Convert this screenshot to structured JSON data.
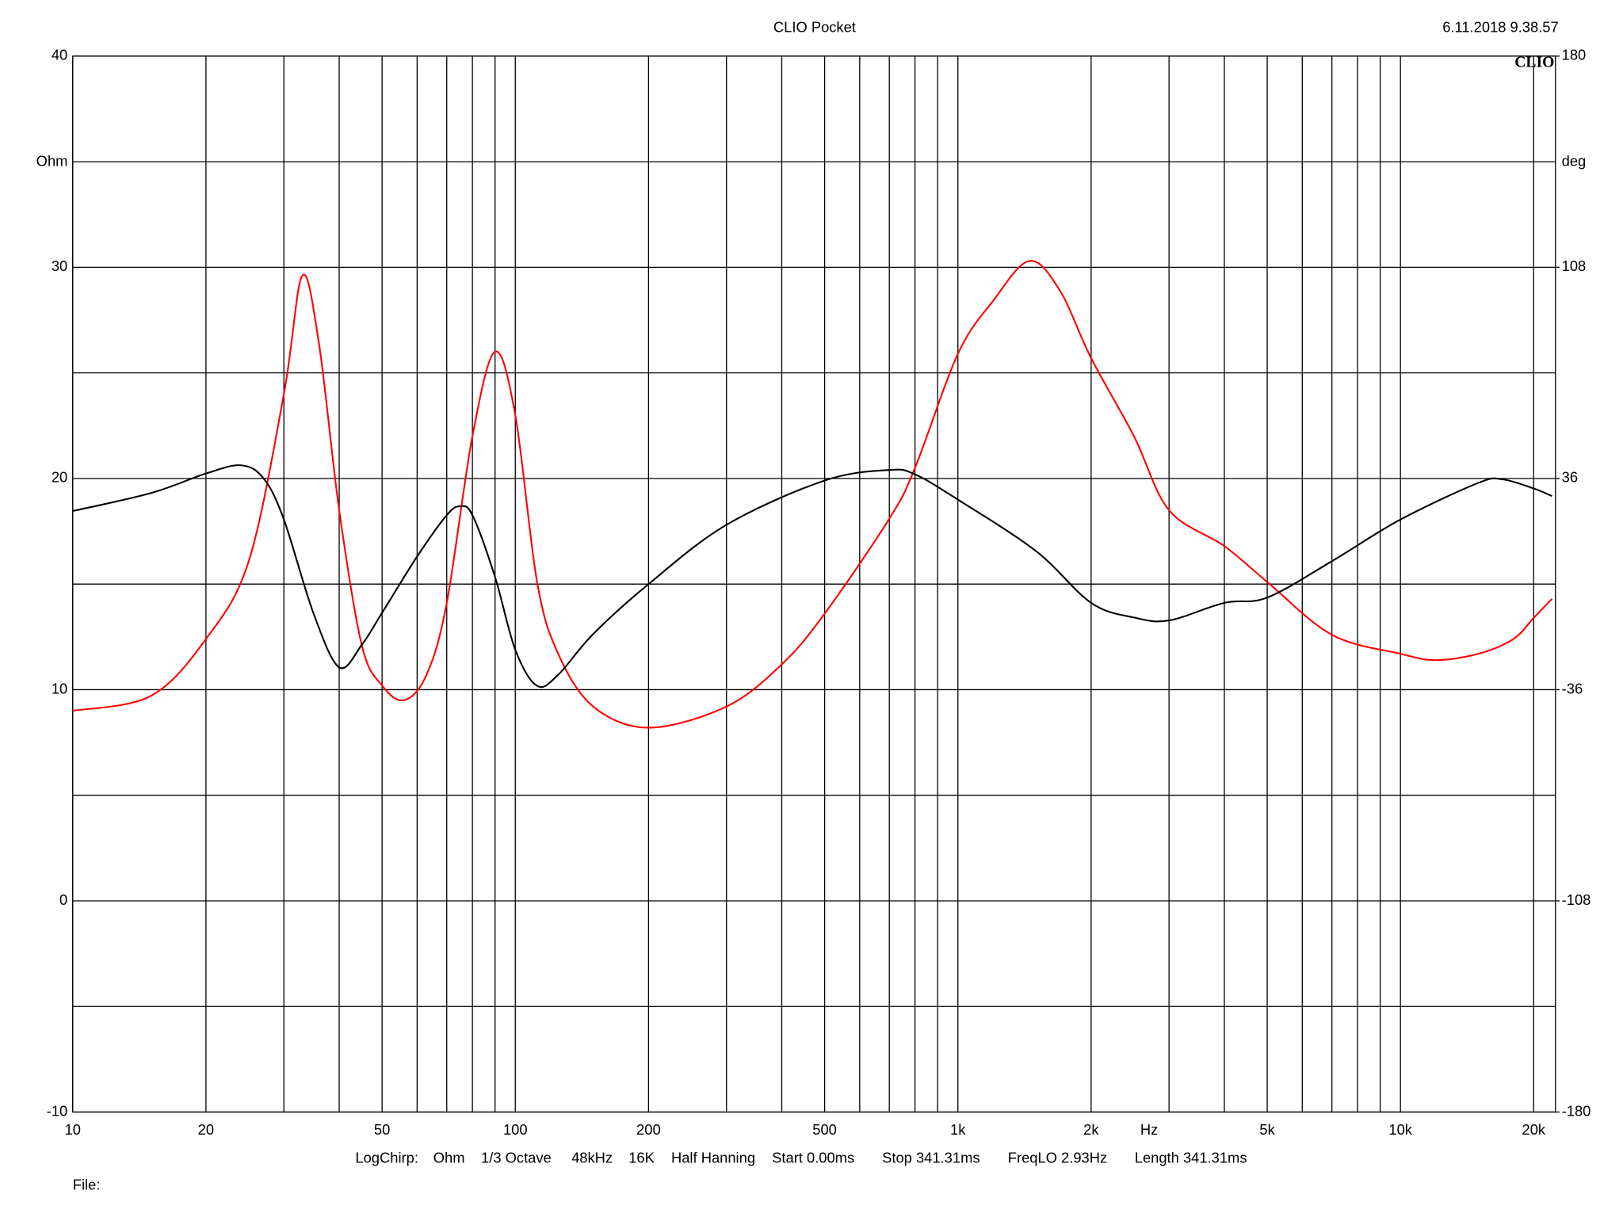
{
  "chart_data": {
    "type": "line",
    "title": "CLIO Pocket",
    "timestamp": "6.11.2018 9.38.57",
    "logo": "CLIO",
    "ylabel": "Ohm",
    "y2label": "deg",
    "xlabel": "Hz",
    "xscale": "log",
    "xlim": [
      10,
      22400
    ],
    "xticks": [
      10,
      20,
      50,
      100,
      200,
      500,
      {
        "value": 1000,
        "label": "1k"
      },
      {
        "value": 2000,
        "label": "2k"
      },
      {
        "value": 5000,
        "label": "5k"
      },
      {
        "value": 10000,
        "label": "10k"
      },
      {
        "value": 20000,
        "label": "20k"
      }
    ],
    "xminor": [
      30,
      40,
      60,
      70,
      80,
      90,
      300,
      400,
      600,
      700,
      800,
      900,
      3000,
      4000,
      6000,
      7000,
      8000,
      9000
    ],
    "ylim": [
      -10,
      40
    ],
    "yticks": [
      40,
      30,
      20,
      10,
      0,
      -10
    ],
    "yminor": [
      35,
      25,
      15,
      5,
      -5
    ],
    "y2lim": [
      -180,
      180
    ],
    "y2ticks": [
      180,
      108,
      36,
      -36,
      -108,
      -180
    ],
    "grid": true,
    "footer": [
      "LogChirp:",
      "Ohm",
      "1/3 Octave",
      "48kHz",
      "16K",
      "Half Hanning",
      "Start 0.00ms",
      "Stop 341.31ms",
      "FreqLO 2.93Hz",
      "Length 341.31ms"
    ],
    "file_label": "File:",
    "series": [
      {
        "color": "#ff0000",
        "axis": "y",
        "x": [
          10,
          15,
          20,
          25,
          30,
          33,
          36,
          40,
          45,
          50,
          56,
          63,
          70,
          80,
          90,
          100,
          112,
          125,
          150,
          200,
          300,
          400,
          500,
          700,
          800,
          1000,
          1200,
          1450,
          1700,
          2000,
          2500,
          3000,
          4000,
          5000,
          7000,
          10000,
          12000,
          15000,
          18000,
          20000,
          22000
        ],
        "values": [
          9.0,
          9.7,
          12.4,
          16.1,
          24.0,
          29.6,
          26.4,
          18.5,
          12.1,
          10.2,
          9.5,
          10.7,
          14.1,
          22.0,
          26.0,
          23.0,
          15.1,
          11.7,
          9.2,
          8.2,
          9.2,
          11.2,
          13.6,
          18.1,
          20.5,
          25.9,
          28.4,
          30.3,
          28.9,
          25.7,
          22.0,
          18.5,
          16.8,
          15.1,
          12.6,
          11.7,
          11.4,
          11.7,
          12.4,
          13.4,
          14.3
        ]
      },
      {
        "color": "#000000",
        "axis": "y2",
        "x": [
          10,
          15,
          20,
          24,
          27,
          30,
          35,
          40,
          45,
          50,
          60,
          70,
          75,
          80,
          90,
          100,
          112,
          125,
          150,
          200,
          300,
          500,
          700,
          800,
          1000,
          1500,
          2000,
          2500,
          3000,
          4000,
          5000,
          7000,
          10000,
          15000,
          17000,
          20000,
          22000
        ],
        "values": [
          24.9,
          31,
          37.7,
          40.5,
          36,
          22,
          -10,
          -28.4,
          -20.7,
          -9.8,
          9.4,
          23.5,
          26.5,
          23.5,
          2.4,
          -22.4,
          -34.7,
          -30.9,
          -17,
          0,
          20.2,
          35.3,
          38.9,
          37.4,
          28.8,
          11.3,
          -6.4,
          -11.4,
          -12.4,
          -6.4,
          -4.6,
          7.8,
          22,
          34.5,
          35.7,
          32.6,
          30
        ]
      }
    ]
  }
}
